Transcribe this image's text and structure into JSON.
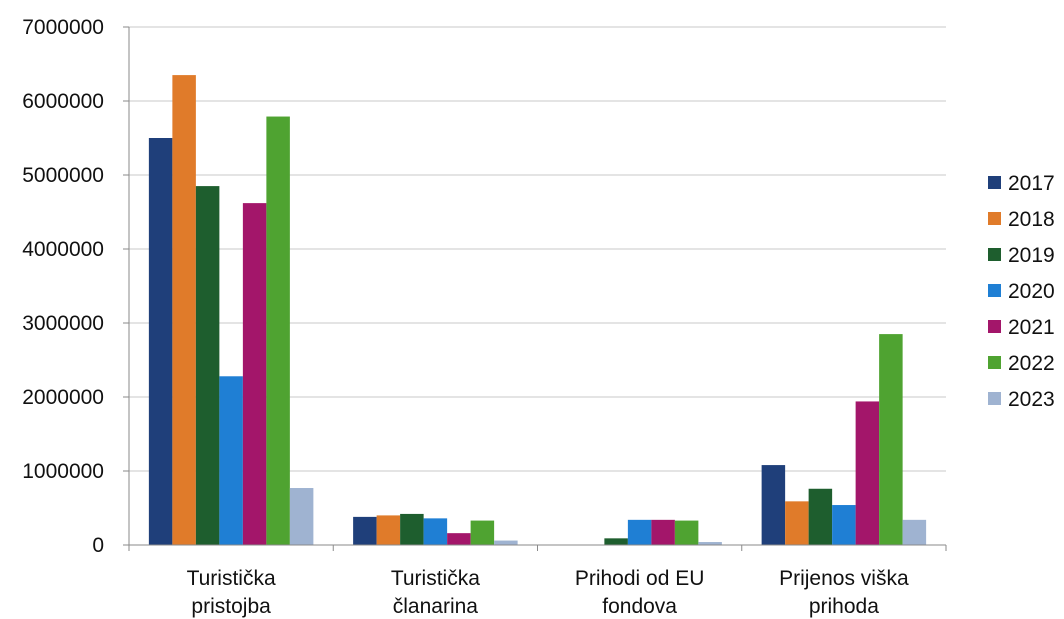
{
  "chart_data": {
    "type": "bar",
    "title": "",
    "xlabel": "",
    "ylabel": "",
    "ylim": [
      0,
      7000000
    ],
    "yticks": [
      0,
      1000000,
      2000000,
      3000000,
      4000000,
      5000000,
      6000000,
      7000000
    ],
    "ytick_labels": [
      "0",
      "1000000",
      "2000000",
      "3000000",
      "4000000",
      "5000000",
      "6000000",
      "7000000"
    ],
    "grid": true,
    "legend_position": "right",
    "categories": [
      [
        "Turistička",
        "pristojba"
      ],
      [
        "Turistička",
        "članarina"
      ],
      [
        "Prihodi od EU",
        "fondova"
      ],
      [
        "Prijenos viška",
        "prihoda"
      ]
    ],
    "series": [
      {
        "name": "2017",
        "color": "#1f3f7a",
        "values": [
          5500000,
          380000,
          0,
          1080000
        ]
      },
      {
        "name": "2018",
        "color": "#e07b2a",
        "values": [
          6350000,
          400000,
          0,
          590000
        ]
      },
      {
        "name": "2019",
        "color": "#1e5e2e",
        "values": [
          4850000,
          420000,
          90000,
          760000
        ]
      },
      {
        "name": "2020",
        "color": "#1f7fd4",
        "values": [
          2280000,
          360000,
          340000,
          540000
        ]
      },
      {
        "name": "2021",
        "color": "#a3166a",
        "values": [
          4620000,
          160000,
          340000,
          1940000
        ]
      },
      {
        "name": "2022",
        "color": "#4fa331",
        "values": [
          5790000,
          330000,
          330000,
          2850000
        ]
      },
      {
        "name": "2023",
        "color": "#9fb3d1",
        "values": [
          770000,
          60000,
          40000,
          340000
        ]
      }
    ]
  }
}
